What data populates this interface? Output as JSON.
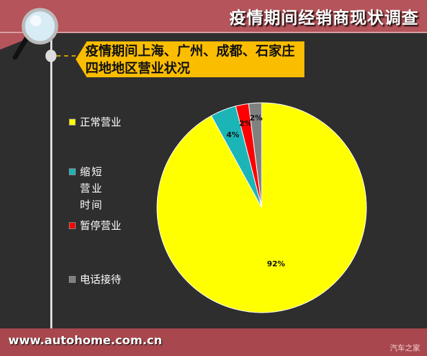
{
  "header": {
    "title": "疫情期间经销商现状调查"
  },
  "subtitle": {
    "line1": "疫情期间上海、广州、成都、石家庄",
    "line2": "四地地区营业状况"
  },
  "footer": {
    "url": "www.autohome.com.cn",
    "watermark": "汽车之家"
  },
  "chart_data": {
    "type": "pie",
    "categories": [
      "正常营业",
      "缩短营业时间",
      "暂停营业",
      "电话接待"
    ],
    "values": [
      92,
      4,
      2,
      2
    ],
    "data_labels": [
      "92%",
      "4%",
      "2%",
      "2%"
    ],
    "colors": [
      "#ffff00",
      "#1bb5b8",
      "#ff0000",
      "#808080"
    ],
    "start": "12 o'clock, clockwise",
    "legend": "left"
  }
}
